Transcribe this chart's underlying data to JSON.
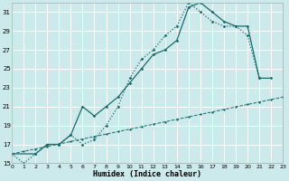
{
  "xlabel": "Humidex (Indice chaleur)",
  "bg_color": "#cce9ec",
  "grid_color": "#ffffff",
  "line_color": "#1a6b6b",
  "x_min": 0,
  "x_max": 23,
  "y_min": 15,
  "y_max": 32,
  "yticks": [
    15,
    17,
    19,
    21,
    23,
    25,
    27,
    29,
    31
  ],
  "xticks": [
    0,
    1,
    2,
    3,
    4,
    5,
    6,
    7,
    8,
    9,
    10,
    11,
    12,
    13,
    14,
    15,
    16,
    17,
    18,
    19,
    20,
    21,
    22,
    23
  ],
  "series1_x": [
    0,
    1,
    2,
    3,
    4,
    5,
    6,
    7,
    8,
    9,
    10,
    11,
    12,
    13,
    14,
    15,
    16,
    17,
    18,
    19,
    20,
    21
  ],
  "series1_y": [
    16,
    15,
    16,
    17,
    17,
    18,
    17,
    17.5,
    19,
    21,
    24,
    26,
    27,
    28.5,
    29.5,
    32,
    31,
    30,
    29.5,
    29.5,
    28.5,
    24
  ],
  "series2_x": [
    0,
    2,
    3,
    4,
    5,
    6,
    7,
    8,
    9,
    10,
    11,
    12,
    13,
    14,
    15,
    16,
    17,
    18,
    19,
    20,
    21,
    22
  ],
  "series2_y": [
    16,
    16,
    17,
    17,
    18,
    21,
    20,
    21,
    22,
    23.5,
    25,
    26.5,
    27,
    28,
    31.5,
    32,
    31,
    30,
    29.5,
    29.5,
    24,
    24
  ],
  "series3_x": [
    0,
    1,
    2,
    3,
    4,
    5,
    6,
    7,
    8,
    9,
    10,
    11,
    12,
    13,
    14,
    15,
    16,
    17,
    18,
    19,
    20,
    21,
    22,
    23
  ],
  "series3_y": [
    16,
    16.26,
    16.52,
    16.78,
    17.04,
    17.3,
    17.57,
    17.83,
    18.09,
    18.35,
    18.61,
    18.87,
    19.13,
    19.39,
    19.65,
    19.91,
    20.17,
    20.43,
    20.7,
    20.96,
    21.22,
    21.48,
    21.74,
    22.0
  ]
}
